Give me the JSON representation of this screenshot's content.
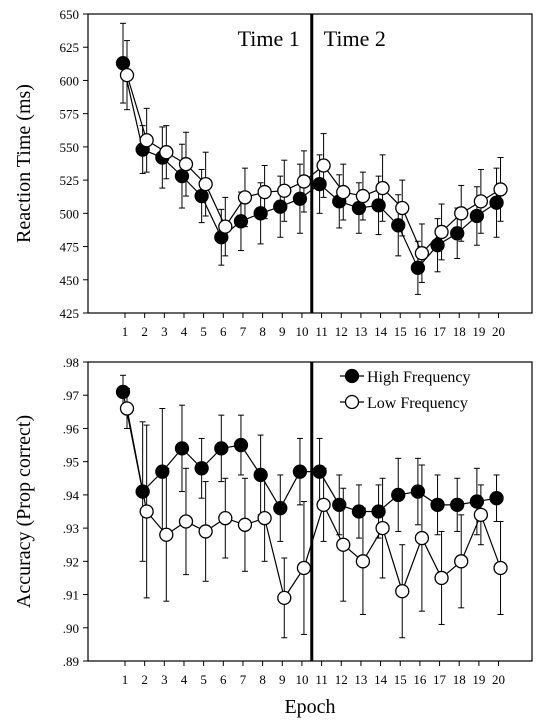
{
  "chart_data": [
    {
      "type": "line",
      "ylabel": "Reaction Time (ms)",
      "xlabel": "",
      "ylim": [
        425,
        650
      ],
      "yticks": [
        425,
        450,
        475,
        500,
        525,
        550,
        575,
        600,
        625,
        650
      ],
      "ytick_labels": [
        "425",
        "450",
        "475",
        "500",
        "525",
        "550",
        "575",
        "600",
        "625",
        "650"
      ],
      "categories": [
        "1",
        "2",
        "3",
        "4",
        "5",
        "6",
        "7",
        "8",
        "9",
        "10",
        "11",
        "12",
        "13",
        "14",
        "15",
        "16",
        "17",
        "18",
        "19",
        "20"
      ],
      "annotations": [
        "Time 1",
        "Time 2"
      ],
      "divider_after_epoch": 10.5,
      "series": [
        {
          "name": "High Frequency",
          "marker": "filled",
          "values": [
            613,
            548,
            542,
            528,
            513,
            482,
            494,
            500,
            505,
            511,
            522,
            509,
            504,
            506,
            491,
            459,
            476,
            485,
            498,
            508
          ],
          "errors": [
            30,
            18,
            23,
            24,
            20,
            21,
            22,
            23,
            23,
            26,
            22,
            20,
            19,
            22,
            23,
            20,
            20,
            19,
            22,
            26
          ]
        },
        {
          "name": "Low Frequency",
          "marker": "open",
          "values": [
            604,
            555,
            546,
            537,
            522,
            490,
            512,
            516,
            517,
            524,
            536,
            516,
            513,
            519,
            504,
            470,
            486,
            500,
            509,
            518
          ],
          "errors": [
            26,
            24,
            20,
            24,
            24,
            22,
            22,
            20,
            23,
            23,
            24,
            21,
            18,
            25,
            21,
            22,
            21,
            21,
            24,
            24
          ]
        }
      ]
    },
    {
      "type": "line",
      "ylabel": "Accuracy (Prop correct)",
      "xlabel": "Epoch",
      "ylim": [
        0.89,
        0.98
      ],
      "yticks": [
        0.89,
        0.9,
        0.91,
        0.92,
        0.93,
        0.94,
        0.95,
        0.96,
        0.97,
        0.98
      ],
      "ytick_labels": [
        ".89",
        ".90",
        ".91",
        ".92",
        ".93",
        ".94",
        ".95",
        ".96",
        ".97",
        ".98"
      ],
      "categories": [
        "1",
        "2",
        "3",
        "4",
        "5",
        "6",
        "7",
        "8",
        "9",
        "10",
        "11",
        "12",
        "13",
        "14",
        "15",
        "16",
        "17",
        "18",
        "19",
        "20"
      ],
      "divider_after_epoch": 10.5,
      "legend": {
        "placement": "top-right",
        "entries": [
          "High Frequency",
          "Low Frequency"
        ]
      },
      "series": [
        {
          "name": "High Frequency",
          "marker": "filled",
          "values": [
            0.971,
            0.941,
            0.947,
            0.954,
            0.948,
            0.954,
            0.955,
            0.946,
            0.936,
            0.947,
            0.947,
            0.937,
            0.935,
            0.935,
            0.94,
            0.941,
            0.937,
            0.937,
            0.938,
            0.939
          ],
          "errors": [
            0.005,
            0.021,
            0.019,
            0.013,
            0.009,
            0.01,
            0.009,
            0.012,
            0.01,
            0.01,
            0.01,
            0.009,
            0.008,
            0.008,
            0.011,
            0.01,
            0.009,
            0.008,
            0.01,
            0.007
          ]
        },
        {
          "name": "Low Frequency",
          "marker": "open",
          "values": [
            0.966,
            0.935,
            0.928,
            0.932,
            0.929,
            0.933,
            0.931,
            0.933,
            0.909,
            0.918,
            0.937,
            0.925,
            0.92,
            0.93,
            0.911,
            0.927,
            0.915,
            0.92,
            0.934,
            0.918
          ],
          "errors": [
            0.006,
            0.026,
            0.02,
            0.016,
            0.015,
            0.012,
            0.014,
            0.013,
            0.012,
            0.02,
            0.011,
            0.017,
            0.016,
            0.015,
            0.014,
            0.022,
            0.014,
            0.014,
            0.009,
            0.014
          ]
        }
      ]
    }
  ]
}
